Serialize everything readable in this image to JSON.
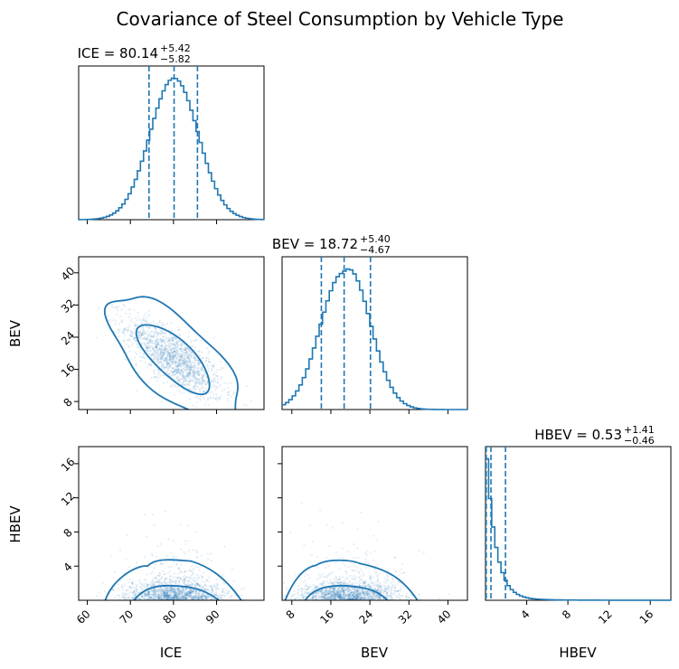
{
  "chart_data": {
    "type": "corner",
    "title": "Covariance of Steel Consumption by Vehicle Type",
    "color": "#1f77b4",
    "parameters": [
      {
        "name": "ICE",
        "median": 80.14,
        "plus": 5.42,
        "minus": 5.82,
        "range": [
          58,
          101
        ],
        "ticks": [
          60,
          70,
          80,
          90
        ],
        "mean": 80.14,
        "sd": 5.6
      },
      {
        "name": "BEV",
        "median": 18.72,
        "plus": 5.4,
        "minus": 4.67,
        "range": [
          6,
          44
        ],
        "ticks": [
          8,
          16,
          24,
          32,
          40
        ],
        "mean": 18.72,
        "sd": 5.0
      },
      {
        "name": "HBEV",
        "median": 0.53,
        "plus": 1.41,
        "minus": 0.46,
        "range": [
          0,
          18
        ],
        "ticks": [
          4,
          8,
          12,
          16
        ]
      }
    ],
    "panels": {
      "ICE_hist": {
        "xlabel_shown": false
      },
      "BEV_vs_ICE": {
        "ylabel": "BEV"
      },
      "BEV_hist": {
        "xlabel_shown": false
      },
      "HBEV_vs_ICE": {
        "ylabel": "HBEV",
        "xlabel": "ICE"
      },
      "HBEV_vs_BEV": {
        "xlabel": "BEV"
      },
      "HBEV_hist": {
        "xlabel": "HBEV"
      }
    },
    "labels": {
      "ICE": "ICE = 80.14",
      "BEV": "BEV = 18.72",
      "HBEV": "HBEV = 0.53",
      "ICE_up": "+5.42",
      "ICE_dn": "−5.82",
      "BEV_up": "+5.40",
      "BEV_dn": "−4.67",
      "HBEV_up": "+1.41",
      "HBEV_dn": "−0.46"
    }
  }
}
